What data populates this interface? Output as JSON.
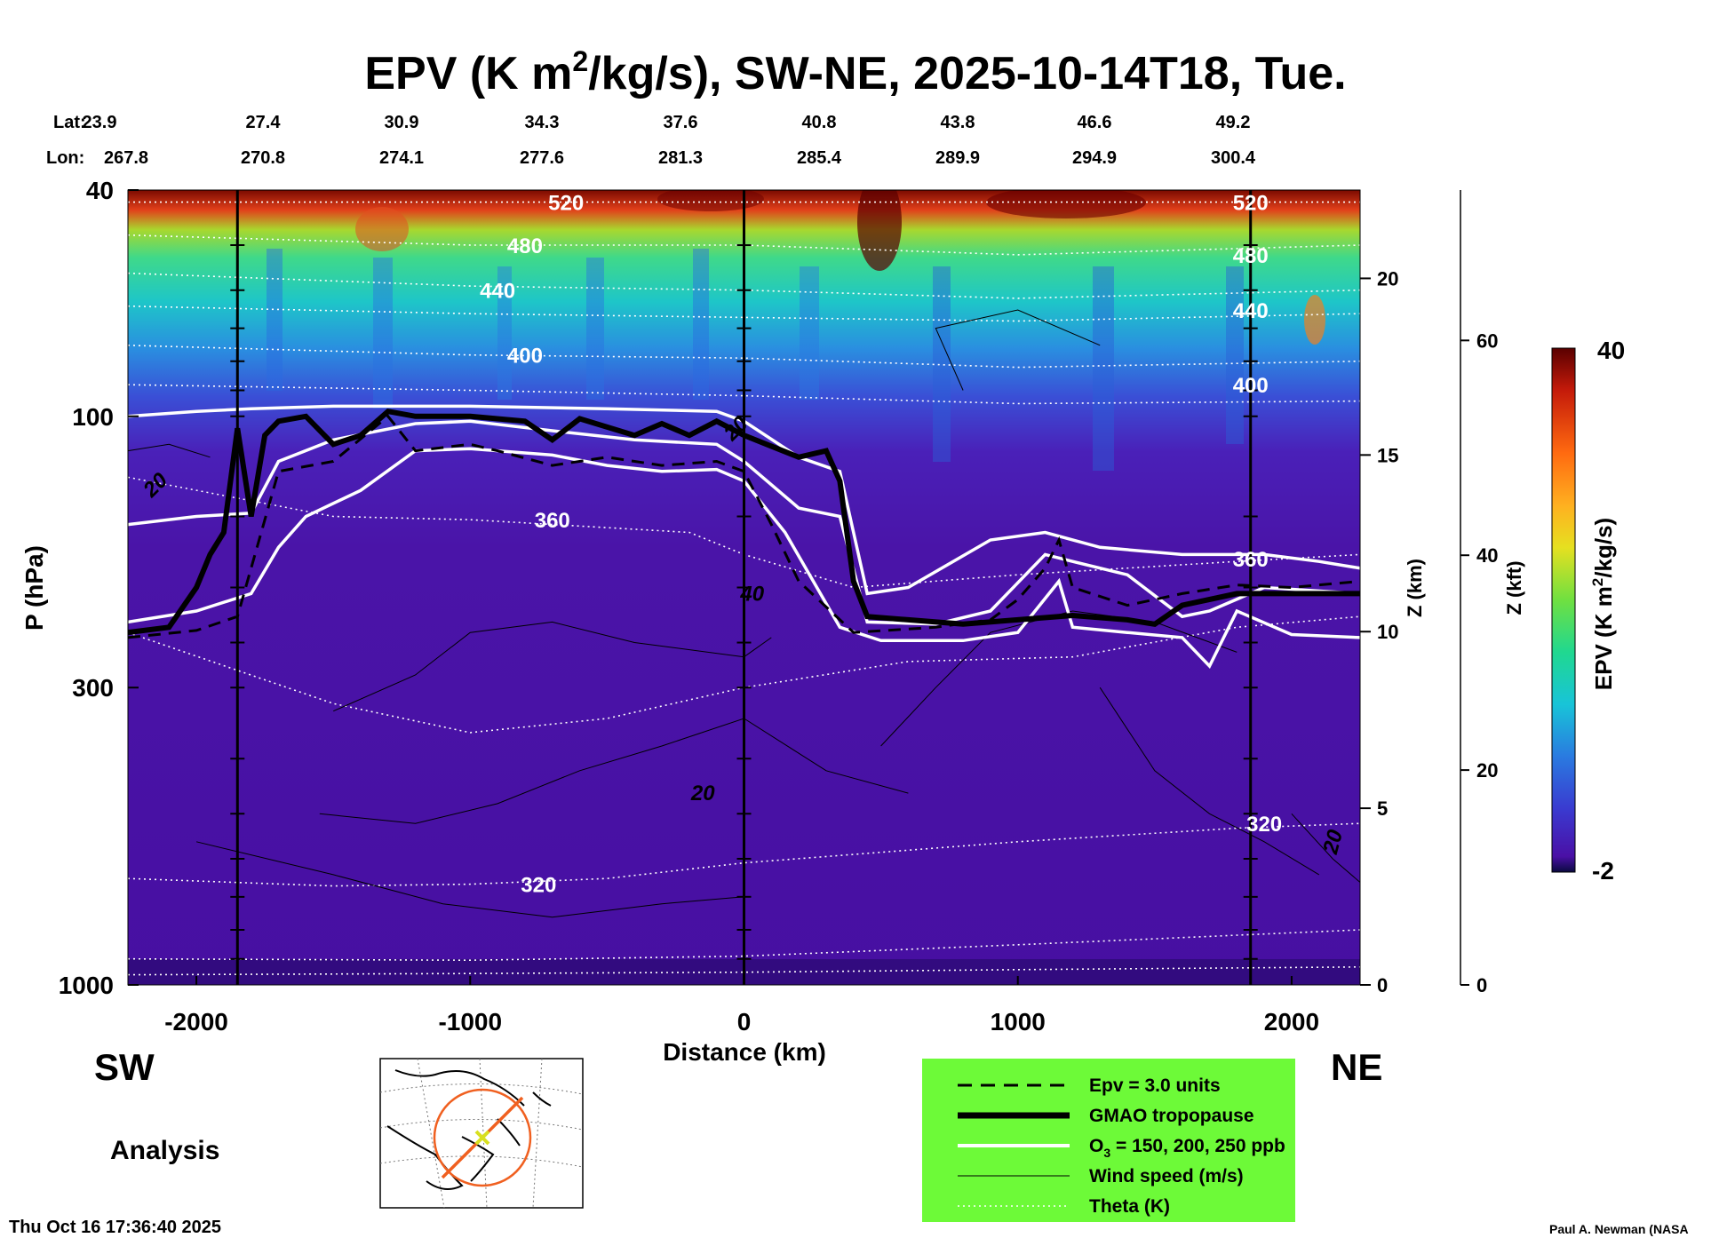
{
  "chart_data": {
    "type": "heatmap",
    "title_main": "EPV (K m",
    "title_sup": "2",
    "title_rest": "/kg/s), SW-NE, 2025-10-14T18, Tue.",
    "lat_label": "Lat:",
    "lon_label": "Lon:",
    "lat_values": [
      "23.9",
      "27.4",
      "30.9",
      "34.3",
      "37.6",
      "40.8",
      "43.8",
      "46.6",
      "49.2"
    ],
    "lon_values": [
      "267.8",
      "270.8",
      "274.1",
      "277.6",
      "281.3",
      "285.4",
      "289.9",
      "294.9",
      "300.4"
    ],
    "xlabel": "Distance (km)",
    "xlim": [
      -2250,
      2250
    ],
    "x_ticks": [
      -2000,
      -1000,
      0,
      1000,
      2000
    ],
    "x_tick_labels": [
      "-2000",
      "-1000",
      "0",
      "1000",
      "2000"
    ],
    "ylabel": "P (hPa)",
    "ylim": [
      1000,
      40
    ],
    "y_ticks": [
      40,
      100,
      300,
      1000
    ],
    "y_tick_labels": [
      "40",
      "100",
      "300",
      "1000"
    ],
    "z_km_label": "Z (km)",
    "z_km_ticks": [
      0,
      5,
      10,
      15,
      20
    ],
    "z_km_tick_labels": [
      "0",
      "5",
      "10",
      "15",
      "20"
    ],
    "z_kft_label": "Z (kft)",
    "z_kft_ticks": [
      0,
      20,
      40,
      60
    ],
    "z_kft_tick_labels": [
      "0",
      "20",
      "40",
      "60"
    ],
    "colorbar": {
      "label_main": "EPV (K m",
      "label_sup": "2",
      "label_rest": "/kg/s)",
      "max_label": "40",
      "min_label": "-2"
    },
    "vertical_markers_km": [
      -1850,
      0,
      1850
    ],
    "tropopause_hpa": [
      [
        -2250,
        240
      ],
      [
        -2100,
        235
      ],
      [
        -2000,
        200
      ],
      [
        -1950,
        175
      ],
      [
        -1900,
        160
      ],
      [
        -1850,
        105
      ],
      [
        -1800,
        150
      ],
      [
        -1750,
        108
      ],
      [
        -1700,
        102
      ],
      [
        -1600,
        100
      ],
      [
        -1500,
        112
      ],
      [
        -1400,
        108
      ],
      [
        -1300,
        98
      ],
      [
        -1200,
        100
      ],
      [
        -1000,
        100
      ],
      [
        -800,
        102
      ],
      [
        -700,
        110
      ],
      [
        -600,
        101
      ],
      [
        -400,
        108
      ],
      [
        -300,
        103
      ],
      [
        -200,
        108
      ],
      [
        -100,
        102
      ],
      [
        0,
        108
      ],
      [
        200,
        118
      ],
      [
        300,
        115
      ],
      [
        350,
        130
      ],
      [
        400,
        195
      ],
      [
        450,
        225
      ],
      [
        600,
        228
      ],
      [
        800,
        232
      ],
      [
        1000,
        228
      ],
      [
        1200,
        224
      ],
      [
        1400,
        228
      ],
      [
        1500,
        232
      ],
      [
        1600,
        215
      ],
      [
        1800,
        205
      ],
      [
        2000,
        205
      ],
      [
        2250,
        205
      ]
    ],
    "epv3_dashed_hpa": [
      [
        -2250,
        245
      ],
      [
        -2000,
        238
      ],
      [
        -1850,
        225
      ],
      [
        -1700,
        125
      ],
      [
        -1500,
        120
      ],
      [
        -1300,
        100
      ],
      [
        -1200,
        115
      ],
      [
        -1000,
        112
      ],
      [
        -900,
        115
      ],
      [
        -700,
        122
      ],
      [
        -500,
        118
      ],
      [
        -300,
        122
      ],
      [
        -100,
        120
      ],
      [
        0,
        125
      ],
      [
        100,
        155
      ],
      [
        200,
        195
      ],
      [
        400,
        240
      ],
      [
        700,
        235
      ],
      [
        900,
        228
      ],
      [
        1000,
        210
      ],
      [
        1100,
        185
      ],
      [
        1150,
        165
      ],
      [
        1200,
        200
      ],
      [
        1400,
        215
      ],
      [
        1600,
        205
      ],
      [
        1800,
        198
      ],
      [
        2000,
        200
      ],
      [
        2250,
        195
      ]
    ],
    "ozone_contours_hpa": [
      [
        [
          -2250,
          100
        ],
        [
          -2000,
          98
        ],
        [
          -1800,
          97
        ],
        [
          -1500,
          96
        ],
        [
          -1000,
          96
        ],
        [
          -500,
          97
        ],
        [
          -100,
          98
        ],
        [
          0,
          102
        ],
        [
          200,
          118
        ],
        [
          350,
          125
        ],
        [
          450,
          205
        ],
        [
          600,
          200
        ],
        [
          900,
          165
        ],
        [
          1100,
          160
        ],
        [
          1300,
          170
        ],
        [
          1600,
          175
        ],
        [
          1900,
          175
        ],
        [
          2100,
          180
        ],
        [
          2250,
          185
        ]
      ],
      [
        [
          -2250,
          155
        ],
        [
          -2000,
          150
        ],
        [
          -1800,
          148
        ],
        [
          -1700,
          120
        ],
        [
          -1500,
          110
        ],
        [
          -1200,
          103
        ],
        [
          -1000,
          102
        ],
        [
          -700,
          106
        ],
        [
          -400,
          110
        ],
        [
          -100,
          112
        ],
        [
          0,
          120
        ],
        [
          200,
          145
        ],
        [
          350,
          150
        ],
        [
          450,
          230
        ],
        [
          700,
          232
        ],
        [
          900,
          220
        ],
        [
          1100,
          175
        ],
        [
          1200,
          180
        ],
        [
          1400,
          190
        ],
        [
          1600,
          225
        ],
        [
          1700,
          220
        ],
        [
          1900,
          200
        ],
        [
          2250,
          205
        ]
      ],
      [
        [
          -2250,
          230
        ],
        [
          -2000,
          220
        ],
        [
          -1800,
          205
        ],
        [
          -1700,
          170
        ],
        [
          -1600,
          150
        ],
        [
          -1400,
          135
        ],
        [
          -1200,
          115
        ],
        [
          -1000,
          114
        ],
        [
          -700,
          117
        ],
        [
          -500,
          122
        ],
        [
          -300,
          125
        ],
        [
          -100,
          124
        ],
        [
          0,
          130
        ],
        [
          150,
          160
        ],
        [
          350,
          235
        ],
        [
          500,
          248
        ],
        [
          800,
          248
        ],
        [
          1000,
          240
        ],
        [
          1150,
          195
        ],
        [
          1200,
          235
        ],
        [
          1400,
          240
        ],
        [
          1600,
          245
        ],
        [
          1700,
          275
        ],
        [
          1800,
          220
        ],
        [
          2000,
          242
        ],
        [
          2250,
          245
        ]
      ]
    ],
    "theta_contours": [
      {
        "label": "520",
        "hpa": 42
      },
      {
        "label": "480",
        "hpa": 50
      },
      {
        "label": "440",
        "hpa": 60
      },
      {
        "label": "400",
        "hpa": 78
      },
      {
        "label": "360",
        "hpa": 150
      },
      {
        "label": "320",
        "hpa": 660
      }
    ],
    "wind_labels": [
      "20",
      "20",
      "40",
      "20",
      "20"
    ],
    "legend": [
      {
        "style": "dashed",
        "label": "Epv = 3.0 units"
      },
      {
        "style": "thick",
        "label": "GMAO tropopause"
      },
      {
        "style": "white",
        "label_pre": "O",
        "label_sub": "3",
        "label_post": " = 150, 200, 250 ppb"
      },
      {
        "style": "thin",
        "label": "Wind speed (m/s)"
      },
      {
        "style": "dotted",
        "label": "Theta (K)"
      }
    ]
  },
  "footer": {
    "sw_label": "SW",
    "ne_label": "NE",
    "analysis_label": "Analysis",
    "timestamp": "Thu Oct 16 17:36:40 2025",
    "credit": "Paul A. Newman (NASA"
  },
  "colors": {
    "legend_bg": "#6dfa38",
    "field_low": "#4a10a6",
    "field_high": "#5a0000"
  }
}
